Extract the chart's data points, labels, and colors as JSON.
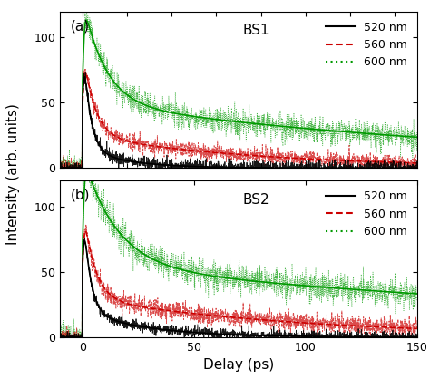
{
  "xlim": [
    -10,
    150
  ],
  "ylim": [
    0,
    120
  ],
  "xlabel": "Delay (ps)",
  "ylabel": "Intensity (arb. units)",
  "panel_a_label": "(a)",
  "panel_b_label": "(b)",
  "bs1_label": "BS1",
  "bs2_label": "BS2",
  "legend_entries": [
    "520 nm",
    "560 nm",
    "600 nm"
  ],
  "colors": [
    "#000000",
    "#cc0000",
    "#009900"
  ],
  "noise_seed_a": 42,
  "noise_seed_b": 99,
  "background_color": "#ffffff",
  "tick_fontsize": 9,
  "label_fontsize": 11,
  "legend_fontsize": 9,
  "panel_label_fontsize": 11,
  "bs_label_fontsize": 11
}
